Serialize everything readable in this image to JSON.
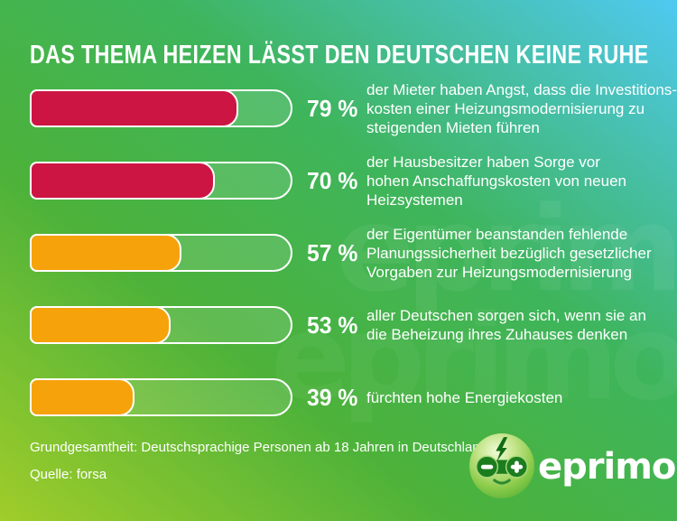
{
  "title": "DAS THEMA HEIZEN LÄSST DEN DEUTSCHEN KEINE RUHE",
  "chart_data": {
    "type": "bar",
    "orientation": "horizontal",
    "unit": "%",
    "value_range": [
      0,
      100
    ],
    "grid": false,
    "legend": false,
    "bars": [
      {
        "value": 79,
        "label": "79 %",
        "color": "#cd1543",
        "description": "der Mieter haben Angst, dass die Investitions-\nkosten einer Heizungsmodernisierung zu\nsteigenden Mieten führen"
      },
      {
        "value": 70,
        "label": "70 %",
        "color": "#cd1543",
        "description": "der Hausbesitzer haben Sorge vor\nhohen Anschaffungskosten von neuen\nHeizsystemen"
      },
      {
        "value": 57,
        "label": "57 %",
        "color": "#f6a20b",
        "description": "der Eigentümer beanstanden fehlende\nPlanungssicherheit bezüglich gesetzlicher\nVorgaben zur Heizungsmodernisierung"
      },
      {
        "value": 53,
        "label": "53 %",
        "color": "#f6a20b",
        "description": "aller Deutschen sorgen sich, wenn sie an\ndie Beheizung ihres Zuhauses denken"
      },
      {
        "value": 39,
        "label": "39 %",
        "color": "#f6a20b",
        "description": "fürchten hohe Energiekosten"
      }
    ]
  },
  "footer": {
    "population": "Grundgesamtheit: Deutschsprachige Personen ab 18 Jahren in Deutschland.",
    "source": "Quelle: forsa"
  },
  "logo": {
    "text": "eprimo",
    "watermark_text": "eprimo"
  },
  "colors": {
    "bar_red": "#cd1543",
    "bar_orange": "#f6a20b",
    "bar_border": "#ffffff",
    "text": "#ffffff",
    "bg_gradient": [
      "#a0cd2a",
      "#4cb23a",
      "#3eb55c",
      "#4fc9f2"
    ]
  }
}
